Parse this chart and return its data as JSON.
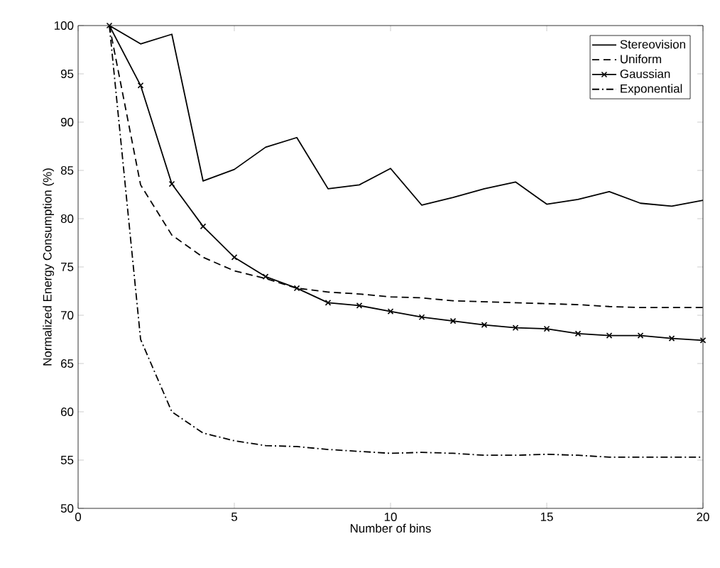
{
  "chart_data": {
    "type": "line",
    "xlabel": "Number of bins",
    "ylabel": "Normalized Energy Consumption (%)",
    "x": [
      1,
      2,
      3,
      4,
      5,
      6,
      7,
      8,
      9,
      10,
      11,
      12,
      13,
      14,
      15,
      16,
      17,
      18,
      19,
      20
    ],
    "xlim": [
      0,
      20
    ],
    "xticks": [
      0,
      5,
      10,
      15,
      20
    ],
    "ylim": [
      50,
      100
    ],
    "yticks": [
      50,
      55,
      60,
      65,
      70,
      75,
      80,
      85,
      90,
      95,
      100
    ],
    "legend": "top right",
    "grid": false,
    "series": [
      {
        "name": "Stereovision",
        "color": "#000000",
        "line_style": "solid",
        "marker": "none",
        "values": [
          100,
          98.1,
          99.1,
          83.9,
          85.1,
          87.4,
          88.4,
          83.1,
          83.5,
          85.2,
          81.4,
          82.2,
          83.1,
          83.8,
          81.5,
          82.0,
          82.8,
          81.6,
          81.3,
          81.9
        ]
      },
      {
        "name": "Uniform",
        "color": "#000000",
        "line_style": "dashed",
        "marker": "none",
        "values": [
          100,
          83.5,
          78.3,
          76.0,
          74.6,
          73.8,
          72.8,
          72.4,
          72.2,
          71.9,
          71.8,
          71.5,
          71.4,
          71.3,
          71.2,
          71.1,
          70.9,
          70.8,
          70.8,
          70.8
        ]
      },
      {
        "name": "Gaussian",
        "color": "#000000",
        "line_style": "solid",
        "marker": "cross",
        "values": [
          100,
          93.8,
          83.6,
          79.2,
          76.0,
          74.0,
          72.8,
          71.3,
          71.0,
          70.4,
          69.8,
          69.4,
          69.0,
          68.7,
          68.6,
          68.1,
          67.9,
          67.9,
          67.6,
          67.4
        ]
      },
      {
        "name": "Exponential",
        "color": "#000000",
        "line_style": "dashdot",
        "marker": "none",
        "values": [
          100,
          67.5,
          60.0,
          57.8,
          57.0,
          56.5,
          56.4,
          56.1,
          55.9,
          55.7,
          55.8,
          55.7,
          55.5,
          55.5,
          55.6,
          55.5,
          55.3,
          55.3,
          55.3,
          55.3
        ]
      }
    ]
  }
}
